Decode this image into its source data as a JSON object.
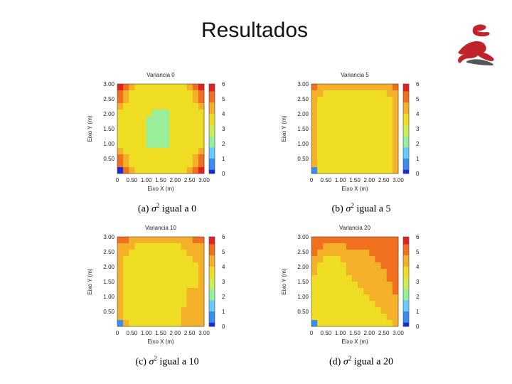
{
  "slide": {
    "title": "Resultados"
  },
  "colors": {
    "palette": [
      "#1a2bd6",
      "#3b8cf0",
      "#66ccff",
      "#99ee99",
      "#ccee55",
      "#eedd22",
      "#f5b02a",
      "#f07020",
      "#e52222"
    ],
    "background": "#ffffff"
  },
  "logo": {
    "icon": "stylized-figure-logo",
    "colors": [
      "#c0242b",
      "#555555"
    ]
  },
  "captions": [
    {
      "prefix": "(a) ",
      "symbol": "σ",
      "exp": "2",
      "text": " igual a 0"
    },
    {
      "prefix": "(b) ",
      "symbol": "σ",
      "exp": "2",
      "text": " igual a 5"
    },
    {
      "prefix": "(c) ",
      "symbol": "σ",
      "exp": "2",
      "text": " igual a 10"
    },
    {
      "prefix": "(d) ",
      "symbol": "σ",
      "exp": "2",
      "text": " igual a 20"
    }
  ],
  "chart_data": [
    {
      "type": "heatmap",
      "title": "Variancia 0",
      "xlabel": "Eixo X (m)",
      "ylabel": "Eixo Y (m)",
      "x_ticks": [
        "0",
        "0.50",
        "1.00",
        "1.50",
        "2.00",
        "2.50",
        "3.00"
      ],
      "y_ticks": [
        "0.50",
        "1.00",
        "1.50",
        "2.00",
        "2.50",
        "3.00"
      ],
      "xlim": [
        0,
        3
      ],
      "ylim": [
        0,
        3
      ],
      "colorbar": {
        "ticks": [
          "0",
          "1",
          "2",
          "3",
          "4",
          "5",
          "6"
        ],
        "range": [
          0,
          6
        ]
      },
      "grid_note": "rows listed from top (y=3.00) to bottom (y=0)",
      "values": [
        [
          5.8,
          5.0,
          4.2,
          4.0,
          4.0,
          4.0,
          4.0,
          4.0,
          4.0,
          4.0,
          4.0,
          4.0,
          4.2,
          5.0,
          5.8
        ],
        [
          5.3,
          4.8,
          4.0,
          3.5,
          3.5,
          3.5,
          3.5,
          3.5,
          3.5,
          3.5,
          3.5,
          3.5,
          4.0,
          4.8,
          5.3
        ],
        [
          5.0,
          4.3,
          3.5,
          3.5,
          3.5,
          3.5,
          3.5,
          3.5,
          3.5,
          3.5,
          3.5,
          3.5,
          3.5,
          4.3,
          5.0
        ],
        [
          4.3,
          3.5,
          3.5,
          3.5,
          3.5,
          3.5,
          3.5,
          3.5,
          3.5,
          3.5,
          3.5,
          3.5,
          3.5,
          3.5,
          4.3
        ],
        [
          4.0,
          3.5,
          3.5,
          3.5,
          3.5,
          3.5,
          2.4,
          2.4,
          2.4,
          3.5,
          3.5,
          3.5,
          3.5,
          3.5,
          4.0
        ],
        [
          4.0,
          3.5,
          3.5,
          3.5,
          3.5,
          2.4,
          2.4,
          2.4,
          2.4,
          3.5,
          3.5,
          3.5,
          3.5,
          3.5,
          4.0
        ],
        [
          4.0,
          3.5,
          3.5,
          3.5,
          3.5,
          2.4,
          2.4,
          2.4,
          2.4,
          3.5,
          3.5,
          3.5,
          3.5,
          3.5,
          4.0
        ],
        [
          4.0,
          3.5,
          3.5,
          3.5,
          3.5,
          2.4,
          2.4,
          2.4,
          2.4,
          3.5,
          3.5,
          3.5,
          3.5,
          3.5,
          4.0
        ],
        [
          4.0,
          3.5,
          3.5,
          3.5,
          3.5,
          2.4,
          2.4,
          2.4,
          2.4,
          3.5,
          3.5,
          3.5,
          3.5,
          3.5,
          4.0
        ],
        [
          4.0,
          3.5,
          3.5,
          3.5,
          3.5,
          2.4,
          2.4,
          2.4,
          2.4,
          3.5,
          3.5,
          3.5,
          3.5,
          3.5,
          4.0
        ],
        [
          4.3,
          3.5,
          3.5,
          3.5,
          3.5,
          3.5,
          3.5,
          3.5,
          3.5,
          3.5,
          3.5,
          3.5,
          3.5,
          3.5,
          4.3
        ],
        [
          5.0,
          4.3,
          3.5,
          3.5,
          3.5,
          3.5,
          3.5,
          3.5,
          3.5,
          3.5,
          3.5,
          3.5,
          3.5,
          4.3,
          5.0
        ],
        [
          5.3,
          4.8,
          4.0,
          3.5,
          3.5,
          3.5,
          3.5,
          3.5,
          3.5,
          3.5,
          3.5,
          3.5,
          4.0,
          4.8,
          5.3
        ],
        [
          0.3,
          5.0,
          4.2,
          4.0,
          4.0,
          4.0,
          4.0,
          4.0,
          4.0,
          4.0,
          4.0,
          4.0,
          4.2,
          5.0,
          5.8
        ]
      ]
    },
    {
      "type": "heatmap",
      "title": "Variancia 5",
      "xlabel": "Eixo X (m)",
      "ylabel": "Eixo Y (m)",
      "x_ticks": [
        "0",
        "0.50",
        "1.00",
        "1.50",
        "2.00",
        "2.50",
        "3.00"
      ],
      "y_ticks": [
        "0.50",
        "1.00",
        "1.50",
        "2.00",
        "2.50",
        "3.00"
      ],
      "xlim": [
        0,
        3
      ],
      "ylim": [
        0,
        3
      ],
      "colorbar": {
        "ticks": [
          "0",
          "1",
          "2",
          "3",
          "4",
          "5",
          "6"
        ],
        "range": [
          0,
          6
        ]
      },
      "grid_note": "rows listed from top (y=3.00) to bottom (y=0)",
      "values": [
        [
          5.0,
          4.8,
          4.5,
          4.5,
          4.5,
          4.5,
          4.5,
          4.5,
          4.5,
          4.5,
          4.5,
          4.5,
          4.5,
          4.8,
          5.0
        ],
        [
          4.8,
          4.5,
          4.0,
          4.0,
          4.0,
          4.0,
          4.0,
          4.0,
          4.0,
          4.0,
          4.0,
          4.0,
          4.0,
          4.5,
          4.8
        ],
        [
          4.5,
          4.0,
          4.0,
          4.0,
          4.0,
          3.5,
          3.5,
          3.5,
          3.5,
          4.0,
          4.0,
          4.0,
          4.0,
          4.0,
          4.5
        ],
        [
          4.5,
          4.0,
          4.0,
          3.5,
          3.5,
          3.5,
          3.5,
          3.5,
          3.5,
          3.5,
          4.0,
          4.0,
          4.0,
          4.0,
          4.5
        ],
        [
          4.5,
          4.0,
          3.5,
          3.5,
          3.5,
          3.5,
          3.5,
          3.5,
          3.5,
          3.5,
          3.5,
          4.0,
          4.0,
          4.0,
          4.5
        ],
        [
          4.5,
          4.0,
          3.5,
          3.5,
          3.5,
          3.5,
          3.5,
          3.5,
          3.5,
          3.5,
          3.5,
          3.5,
          4.0,
          4.0,
          4.5
        ],
        [
          4.5,
          4.0,
          3.5,
          3.5,
          3.5,
          3.5,
          3.5,
          3.5,
          3.5,
          3.5,
          3.5,
          3.5,
          4.0,
          4.0,
          4.5
        ],
        [
          4.5,
          4.0,
          3.5,
          3.5,
          3.5,
          3.5,
          3.5,
          3.5,
          3.5,
          3.5,
          3.5,
          3.5,
          4.0,
          4.0,
          4.5
        ],
        [
          4.5,
          4.0,
          4.0,
          3.5,
          3.5,
          3.5,
          3.5,
          3.5,
          3.5,
          3.5,
          3.5,
          4.0,
          4.0,
          4.0,
          4.5
        ],
        [
          4.5,
          4.0,
          4.0,
          4.0,
          3.5,
          3.5,
          3.5,
          3.5,
          3.5,
          4.0,
          4.0,
          4.0,
          4.0,
          4.0,
          4.5
        ],
        [
          4.5,
          4.0,
          4.0,
          4.0,
          4.0,
          4.0,
          3.5,
          3.5,
          4.0,
          4.0,
          4.0,
          4.0,
          4.0,
          4.0,
          4.5
        ],
        [
          4.5,
          4.0,
          4.0,
          4.0,
          4.0,
          4.0,
          4.0,
          4.0,
          4.0,
          4.0,
          4.0,
          4.0,
          4.0,
          4.0,
          4.5
        ],
        [
          4.5,
          4.0,
          4.0,
          4.0,
          4.0,
          4.0,
          4.0,
          4.0,
          4.0,
          4.0,
          4.0,
          4.0,
          4.0,
          4.0,
          4.5
        ],
        [
          0.5,
          4.0,
          4.0,
          4.0,
          4.0,
          4.0,
          4.0,
          4.0,
          4.0,
          4.0,
          4.0,
          4.0,
          4.0,
          4.0,
          4.5
        ]
      ]
    },
    {
      "type": "heatmap",
      "title": "Variancia 10",
      "xlabel": "Eixo X (m)",
      "ylabel": "Eixo Y (m)",
      "x_ticks": [
        "0",
        "0.50",
        "1.00",
        "1.50",
        "2.00",
        "2.50",
        "3.00"
      ],
      "y_ticks": [
        "0.50",
        "1.00",
        "1.50",
        "2.00",
        "2.50",
        "3.00"
      ],
      "xlim": [
        0,
        3
      ],
      "ylim": [
        0,
        3
      ],
      "colorbar": {
        "ticks": [
          "0",
          "1",
          "2",
          "3",
          "4",
          "5",
          "6"
        ],
        "range": [
          0,
          6
        ]
      },
      "grid_note": "rows listed from top (y=3.00) to bottom (y=0)",
      "values": [
        [
          5.0,
          5.0,
          4.8,
          4.5,
          4.5,
          4.5,
          4.5,
          4.5,
          4.5,
          4.5,
          4.5,
          4.8,
          4.8,
          5.0,
          5.0
        ],
        [
          4.8,
          4.5,
          4.5,
          4.0,
          4.0,
          4.0,
          4.0,
          4.0,
          4.0,
          4.0,
          4.0,
          4.5,
          4.5,
          4.8,
          4.8
        ],
        [
          4.5,
          4.5,
          4.0,
          4.0,
          4.0,
          3.5,
          4.0,
          3.5,
          4.0,
          4.0,
          4.0,
          4.0,
          4.5,
          4.5,
          4.5
        ],
        [
          4.5,
          4.0,
          4.0,
          4.0,
          3.5,
          3.5,
          3.5,
          3.5,
          3.5,
          4.0,
          4.0,
          4.0,
          4.0,
          4.5,
          4.5
        ],
        [
          4.5,
          4.0,
          4.0,
          4.0,
          4.0,
          3.5,
          3.5,
          3.5,
          3.5,
          3.5,
          4.0,
          4.0,
          4.0,
          4.0,
          4.5
        ],
        [
          4.5,
          4.0,
          4.0,
          3.5,
          3.5,
          3.5,
          3.5,
          3.5,
          3.5,
          3.5,
          3.5,
          4.0,
          4.0,
          4.0,
          4.5
        ],
        [
          4.5,
          4.0,
          3.5,
          3.5,
          3.5,
          3.5,
          3.5,
          3.5,
          3.5,
          3.5,
          3.5,
          3.5,
          4.0,
          4.0,
          4.5
        ],
        [
          4.5,
          4.0,
          3.5,
          3.5,
          3.5,
          3.5,
          3.5,
          3.5,
          3.5,
          3.5,
          3.5,
          3.5,
          4.0,
          4.0,
          4.5
        ],
        [
          4.5,
          4.0,
          3.5,
          3.5,
          3.5,
          3.5,
          3.5,
          3.5,
          3.5,
          3.5,
          3.5,
          4.0,
          4.5,
          4.5,
          4.5
        ],
        [
          4.5,
          4.0,
          3.5,
          3.5,
          3.5,
          3.5,
          3.5,
          3.5,
          3.5,
          3.5,
          4.0,
          4.0,
          4.5,
          4.5,
          4.5
        ],
        [
          4.5,
          4.0,
          3.5,
          3.5,
          3.5,
          3.5,
          3.5,
          3.5,
          3.5,
          4.0,
          4.0,
          4.0,
          4.5,
          4.5,
          4.5
        ],
        [
          4.5,
          4.0,
          4.0,
          3.5,
          3.5,
          3.5,
          3.5,
          3.5,
          3.5,
          4.0,
          4.0,
          4.5,
          4.5,
          4.5,
          4.5
        ],
        [
          4.5,
          4.0,
          4.0,
          4.0,
          4.0,
          4.0,
          4.0,
          4.0,
          4.0,
          4.0,
          4.0,
          4.5,
          4.5,
          4.5,
          4.5
        ],
        [
          0.5,
          4.5,
          4.0,
          4.0,
          4.0,
          4.0,
          4.0,
          4.0,
          4.0,
          4.0,
          4.0,
          4.5,
          4.5,
          4.5,
          4.5
        ]
      ]
    },
    {
      "type": "heatmap",
      "title": "Variancia 20",
      "xlabel": "Eixo X (m)",
      "ylabel": "Eixo Y (m)",
      "x_ticks": [
        "0",
        "0.50",
        "1.00",
        "1.50",
        "2.00",
        "2.50",
        "3.00"
      ],
      "y_ticks": [
        "0.50",
        "1.00",
        "1.50",
        "2.00",
        "2.50",
        "3.00"
      ],
      "xlim": [
        0,
        3
      ],
      "ylim": [
        0,
        3
      ],
      "colorbar": {
        "ticks": [
          "0",
          "1",
          "2",
          "3",
          "4",
          "5",
          "6"
        ],
        "range": [
          0,
          6
        ]
      },
      "grid_note": "rows listed from top (y=3.00) to bottom (y=0)",
      "values": [
        [
          5.0,
          5.0,
          5.0,
          5.0,
          5.0,
          5.0,
          5.0,
          5.0,
          5.0,
          5.0,
          5.0,
          5.0,
          5.0,
          5.0,
          5.0
        ],
        [
          5.0,
          5.0,
          4.8,
          4.8,
          4.8,
          4.8,
          5.0,
          5.0,
          5.0,
          5.0,
          5.0,
          5.0,
          5.0,
          5.0,
          5.0
        ],
        [
          5.0,
          4.8,
          4.5,
          4.5,
          4.5,
          4.5,
          4.8,
          4.8,
          4.8,
          4.8,
          5.0,
          5.0,
          5.0,
          5.0,
          5.0
        ],
        [
          4.8,
          4.5,
          4.0,
          4.0,
          4.0,
          4.5,
          4.5,
          4.8,
          4.8,
          4.8,
          4.8,
          5.0,
          5.0,
          5.0,
          5.0
        ],
        [
          4.5,
          4.0,
          4.0,
          4.0,
          4.0,
          4.0,
          4.5,
          4.5,
          4.8,
          4.8,
          4.8,
          4.8,
          5.0,
          5.0,
          5.0
        ],
        [
          4.5,
          4.0,
          3.5,
          3.5,
          4.0,
          4.0,
          4.5,
          4.5,
          4.5,
          4.8,
          4.8,
          4.8,
          4.8,
          5.0,
          5.0
        ],
        [
          4.0,
          3.5,
          3.5,
          3.5,
          3.5,
          4.0,
          4.0,
          4.5,
          4.5,
          4.5,
          4.8,
          4.8,
          4.8,
          5.0,
          5.0
        ],
        [
          4.0,
          3.5,
          3.5,
          3.5,
          3.5,
          3.5,
          4.0,
          4.0,
          4.5,
          4.5,
          4.5,
          4.8,
          4.8,
          4.8,
          5.0
        ],
        [
          4.0,
          3.5,
          3.5,
          3.5,
          3.5,
          3.5,
          3.5,
          4.0,
          4.0,
          4.5,
          4.5,
          4.5,
          4.8,
          4.8,
          5.0
        ],
        [
          3.5,
          3.5,
          3.5,
          3.5,
          3.5,
          3.5,
          3.5,
          3.5,
          4.0,
          4.0,
          4.5,
          4.5,
          4.5,
          4.8,
          4.8
        ],
        [
          3.5,
          3.5,
          3.5,
          3.5,
          3.5,
          3.5,
          3.5,
          3.5,
          3.5,
          4.0,
          4.0,
          4.5,
          4.5,
          4.5,
          4.8
        ],
        [
          3.5,
          3.5,
          3.5,
          3.5,
          3.5,
          3.5,
          3.5,
          3.5,
          3.5,
          3.5,
          4.0,
          4.0,
          4.5,
          4.5,
          4.5
        ],
        [
          3.5,
          3.5,
          3.5,
          3.5,
          3.5,
          3.5,
          3.5,
          3.5,
          3.5,
          3.5,
          3.5,
          4.0,
          4.0,
          4.5,
          4.5
        ],
        [
          0.5,
          3.5,
          3.5,
          3.5,
          3.5,
          3.5,
          3.5,
          3.5,
          3.5,
          3.5,
          3.5,
          3.5,
          4.0,
          4.0,
          4.5
        ]
      ]
    }
  ]
}
